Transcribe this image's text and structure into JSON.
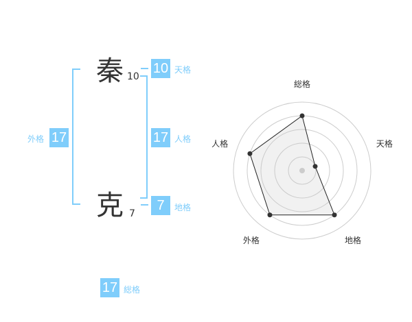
{
  "name": {
    "chars": [
      {
        "char": "秦",
        "strokes": "10"
      },
      {
        "char": "克",
        "strokes": "7"
      }
    ]
  },
  "kaku": {
    "tenkaku": {
      "label": "天格",
      "value": "10"
    },
    "jinkaku": {
      "label": "人格",
      "value": "17"
    },
    "chikaku": {
      "label": "地格",
      "value": "7"
    },
    "gaikaku": {
      "label": "外格",
      "value": "17"
    },
    "soukaku": {
      "label": "総格",
      "value": "17"
    }
  },
  "accent": "#7fcdfb",
  "chart_data": {
    "type": "radar",
    "axes": [
      "総格",
      "天格",
      "地格",
      "外格",
      "人格"
    ],
    "values": [
      4,
      1,
      4,
      4,
      4
    ],
    "range": [
      0,
      5
    ],
    "rings": 5
  }
}
